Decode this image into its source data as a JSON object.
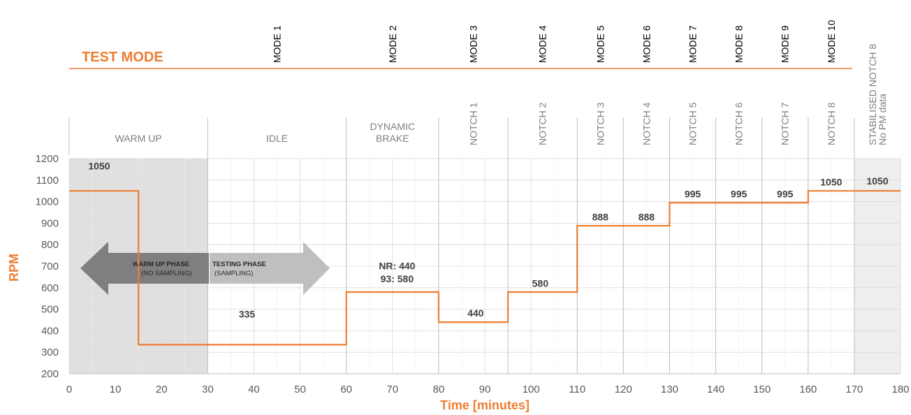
{
  "chart_data": {
    "type": "line",
    "title": "",
    "xlabel": "Time [minutes]",
    "ylabel": "RPM",
    "xlim": [
      0,
      180
    ],
    "ylim": [
      200,
      1200
    ],
    "x_ticks": [
      "0",
      "10",
      "20",
      "30",
      "40",
      "50",
      "60",
      "70",
      "80",
      "90",
      "100",
      "110",
      "120",
      "130",
      "140",
      "150",
      "160",
      "170",
      "180"
    ],
    "y_ticks": [
      "1200",
      "1100",
      "1000",
      "900",
      "800",
      "700",
      "600",
      "500",
      "400",
      "300",
      "200"
    ],
    "grid": true,
    "series": [
      {
        "name": "",
        "color": "#ed7d31",
        "step": true,
        "points": [
          [
            0,
            1050
          ],
          [
            15,
            1050
          ],
          [
            15,
            335
          ],
          [
            60,
            335
          ],
          [
            60,
            580
          ],
          [
            80,
            580
          ],
          [
            80,
            440
          ],
          [
            95,
            440
          ],
          [
            95,
            580
          ],
          [
            110,
            580
          ],
          [
            110,
            888
          ],
          [
            130,
            888
          ],
          [
            130,
            995
          ],
          [
            160,
            995
          ],
          [
            160,
            1050
          ],
          [
            180,
            1050
          ]
        ]
      }
    ],
    "shaded_regions": [
      {
        "x": [
          0,
          30
        ],
        "label": "warm-up"
      },
      {
        "x": [
          170,
          180
        ],
        "label": "stabilised"
      }
    ],
    "test_mode_label": "TEST MODE",
    "phases": [
      {
        "label": "WARM UP",
        "x": [
          0,
          30
        ],
        "vertical": false
      },
      {
        "label": "IDLE",
        "x": [
          30,
          60
        ],
        "vertical": false
      },
      {
        "label": "DYNAMIC BRAKE",
        "x": [
          60,
          80
        ],
        "vertical": false,
        "lines": [
          "DYNAMIC",
          "BRAKE"
        ]
      },
      {
        "label": "NOTCH 1",
        "x": [
          80,
          95
        ],
        "vertical": true
      },
      {
        "label": "NOTCH 2",
        "x": [
          95,
          110
        ],
        "vertical": true
      },
      {
        "label": "NOTCH 3",
        "x": [
          110,
          120
        ],
        "vertical": true
      },
      {
        "label": "NOTCH 4",
        "x": [
          120,
          130
        ],
        "vertical": true
      },
      {
        "label": "NOTCH 5",
        "x": [
          130,
          140
        ],
        "vertical": true
      },
      {
        "label": "NOTCH 6",
        "x": [
          140,
          150
        ],
        "vertical": true
      },
      {
        "label": "NOTCH 7",
        "x": [
          150,
          160
        ],
        "vertical": true
      },
      {
        "label": "NOTCH 8",
        "x": [
          160,
          170
        ],
        "vertical": true
      },
      {
        "label": "STABILISED NOTCH 8 No PM data",
        "x": [
          170,
          180
        ],
        "vertical": true,
        "lines": [
          "STABILISED NOTCH 8",
          "No PM data"
        ]
      }
    ],
    "modes": [
      {
        "label": "MODE 1",
        "x": 45
      },
      {
        "label": "MODE 2",
        "x": 70
      },
      {
        "label": "MODE 3",
        "x": 87.5
      },
      {
        "label": "MODE 4",
        "x": 102.5
      },
      {
        "label": "MODE 5",
        "x": 115
      },
      {
        "label": "MODE 6",
        "x": 125
      },
      {
        "label": "MODE 7",
        "x": 135
      },
      {
        "label": "MODE 8",
        "x": 145
      },
      {
        "label": "MODE 9",
        "x": 155
      },
      {
        "label": "MODE 10",
        "x": 165
      }
    ],
    "value_labels": [
      {
        "text": "1050",
        "x": 6.5,
        "y": 1150
      },
      {
        "text": "335",
        "x": 38.5,
        "y": 462
      },
      {
        "text": "NR: 440",
        "x": 71,
        "y": 685
      },
      {
        "text": "93: 580",
        "x": 71,
        "y": 625
      },
      {
        "text": "440",
        "x": 88,
        "y": 467
      },
      {
        "text": "580",
        "x": 102,
        "y": 604
      },
      {
        "text": "888",
        "x": 115,
        "y": 913
      },
      {
        "text": "888",
        "x": 125,
        "y": 913
      },
      {
        "text": "995",
        "x": 135,
        "y": 1019
      },
      {
        "text": "995",
        "x": 145,
        "y": 1019
      },
      {
        "text": "995",
        "x": 155,
        "y": 1019
      },
      {
        "text": "1050",
        "x": 165,
        "y": 1075
      },
      {
        "text": "1050",
        "x": 175,
        "y": 1080
      }
    ],
    "arrows": [
      {
        "label": "WARM UP PHASE",
        "sublabel": "(NO SAMPLING)",
        "direction": "left"
      },
      {
        "label": "TESTING PHASE",
        "sublabel": "(SAMPLING)",
        "direction": "right"
      }
    ]
  }
}
